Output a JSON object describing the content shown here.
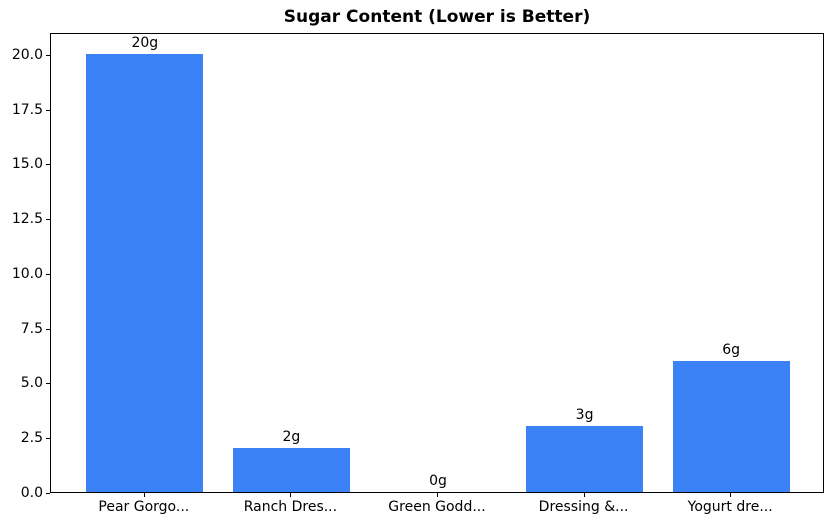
{
  "chart_data": {
    "type": "bar",
    "title": "Sugar Content (Lower is Better)",
    "categories": [
      "Pear Gorgo...",
      "Ranch Dres...",
      "Green Godd...",
      "Dressing &...",
      "Yogurt dre..."
    ],
    "values": [
      20,
      2,
      0,
      3,
      6
    ],
    "bar_labels": [
      "20g",
      "2g",
      "0g",
      "3g",
      "6g"
    ],
    "xlabel": "",
    "ylabel": "",
    "ylim": [
      0,
      21
    ],
    "yticks": [
      0.0,
      2.5,
      5.0,
      7.5,
      10.0,
      12.5,
      15.0,
      17.5,
      20.0
    ],
    "ytick_labels": [
      "0.0",
      "2.5",
      "5.0",
      "7.5",
      "10.0",
      "12.5",
      "15.0",
      "17.5",
      "20.0"
    ],
    "grid": false,
    "legend_position": "none",
    "bar_color": "#3b82f6",
    "axis_color": "#000000",
    "text_color": "#000000",
    "background_color": "#ffffff"
  }
}
